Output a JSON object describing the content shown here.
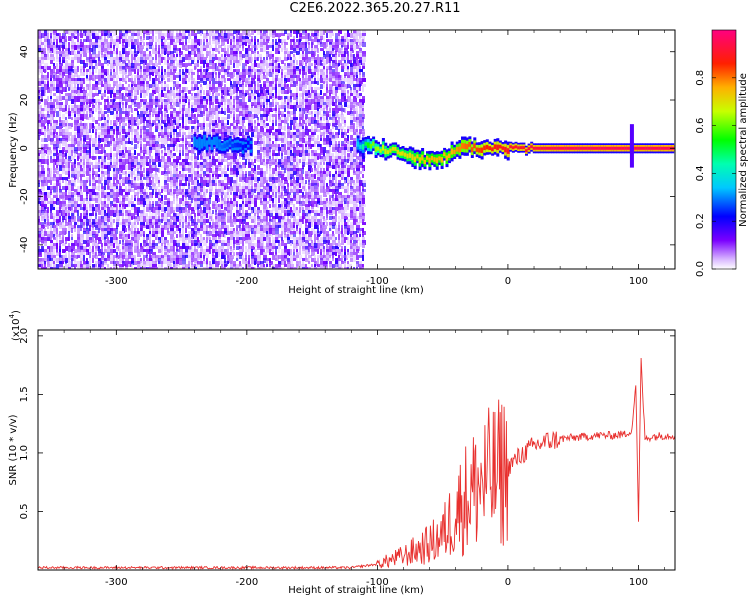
{
  "title": "C2E6.2022.365.20.27.R11",
  "chart_data": [
    {
      "type": "heatmap",
      "xlabel": "Height of straight line (km)",
      "ylabel": "Frequency (Hz)",
      "xlim": [
        -360,
        128
      ],
      "ylim": [
        -50,
        49
      ],
      "xticks": [
        -300,
        -200,
        -100,
        0,
        100
      ],
      "yticks": [
        -40,
        -20,
        0,
        20,
        40
      ],
      "colorbar": {
        "label": "Normalized spectral amplitude",
        "range": [
          0,
          1
        ],
        "ticks": [
          0.0,
          0.2,
          0.4,
          0.6,
          0.8
        ],
        "tick_labels": [
          "0.0",
          "0.2",
          "0.4",
          "0.6",
          "0.8"
        ]
      },
      "noise_region_x": [
        -360,
        -110
      ],
      "signal_track": [
        {
          "x": -240,
          "f": 2,
          "amp": 0.3
        },
        {
          "x": -225,
          "f": 2,
          "amp": 0.3
        },
        {
          "x": -195,
          "f": 1,
          "amp": 0.2
        },
        {
          "x": -115,
          "f": 2,
          "amp": 0.35
        },
        {
          "x": -105,
          "f": 1,
          "amp": 0.6
        },
        {
          "x": -90,
          "f": -1,
          "amp": 0.7
        },
        {
          "x": -75,
          "f": -3,
          "amp": 0.7
        },
        {
          "x": -60,
          "f": -5,
          "amp": 0.75
        },
        {
          "x": -45,
          "f": -3,
          "amp": 0.75
        },
        {
          "x": -35,
          "f": 1,
          "amp": 0.8
        },
        {
          "x": -20,
          "f": 0,
          "amp": 0.85
        },
        {
          "x": 0,
          "f": 0,
          "amp": 0.9
        },
        {
          "x": 40,
          "f": 0,
          "amp": 0.95
        },
        {
          "x": 90,
          "f": 0,
          "amp": 0.95
        },
        {
          "x": 128,
          "f": 0,
          "amp": 0.95
        }
      ]
    },
    {
      "type": "line",
      "xlabel": "Height of straight line (km)",
      "ylabel": "SNR (10 * v/v)",
      "y_multiplier": "(x10",
      "y_multiplier_exp": "4",
      "xlim": [
        -360,
        128
      ],
      "ylim": [
        0,
        2.05
      ],
      "xticks": [
        -300,
        -200,
        -100,
        0,
        100
      ],
      "yticks": [
        0.5,
        1.0,
        1.5,
        2.0
      ],
      "ytick_labels": [
        "0.5",
        "1.0",
        "1.5",
        "2.0"
      ],
      "series": [
        {
          "color": "#e8302e",
          "x": [
            -360,
            -320,
            -280,
            -240,
            -200,
            -160,
            -120,
            -100,
            -80,
            -60,
            -50,
            -40,
            -30,
            -20,
            -10,
            0,
            10,
            20,
            30,
            40,
            50,
            60,
            70,
            80,
            90,
            95,
            98,
            100,
            102,
            105,
            110,
            120,
            128
          ],
          "y": [
            0.02,
            0.02,
            0.02,
            0.02,
            0.02,
            0.02,
            0.02,
            0.05,
            0.12,
            0.22,
            0.3,
            0.5,
            0.65,
            0.75,
            0.8,
            0.88,
            0.98,
            1.06,
            1.1,
            1.12,
            1.13,
            1.14,
            1.15,
            1.15,
            1.16,
            1.2,
            1.6,
            0.4,
            1.8,
            1.12,
            1.14,
            1.15,
            1.15
          ]
        }
      ]
    }
  ]
}
